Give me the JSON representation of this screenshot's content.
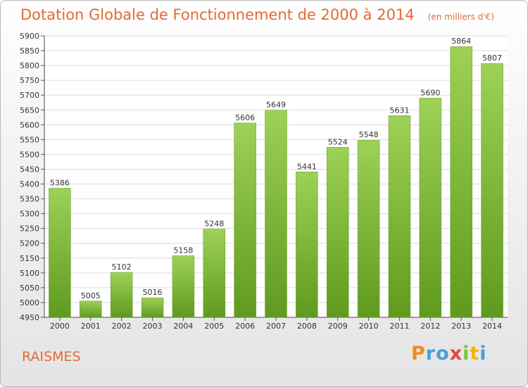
{
  "title": "Dotation Globale de Fonctionnement de 2000 à 2014",
  "unit": "(en milliers d'€)",
  "town": "RAISMES",
  "logo": {
    "letters": [
      "P",
      "r",
      "o",
      "x",
      "i",
      "t",
      "i"
    ],
    "colors": [
      "#f08a1c",
      "#4aa0d6",
      "#4aa0d6",
      "#e0473a",
      "#7ac143",
      "#f2b705",
      "#4aa0d6"
    ]
  },
  "colors": {
    "bar_top": "#9dd157",
    "bar_bottom": "#5f9a1f",
    "accent": "#e06b36"
  },
  "chart_data": {
    "type": "bar",
    "categories": [
      "2000",
      "2001",
      "2002",
      "2003",
      "2004",
      "2005",
      "2006",
      "2007",
      "2008",
      "2009",
      "2010",
      "2011",
      "2012",
      "2013",
      "2014"
    ],
    "values": [
      5386,
      5005,
      5102,
      5016,
      5158,
      5248,
      5606,
      5649,
      5441,
      5524,
      5548,
      5631,
      5690,
      5864,
      5807
    ],
    "ylim": [
      4950,
      5900
    ],
    "yticks": [
      4950,
      5000,
      5050,
      5100,
      5150,
      5200,
      5250,
      5300,
      5350,
      5400,
      5450,
      5500,
      5550,
      5600,
      5650,
      5700,
      5750,
      5800,
      5850,
      5900
    ],
    "grid": true
  }
}
